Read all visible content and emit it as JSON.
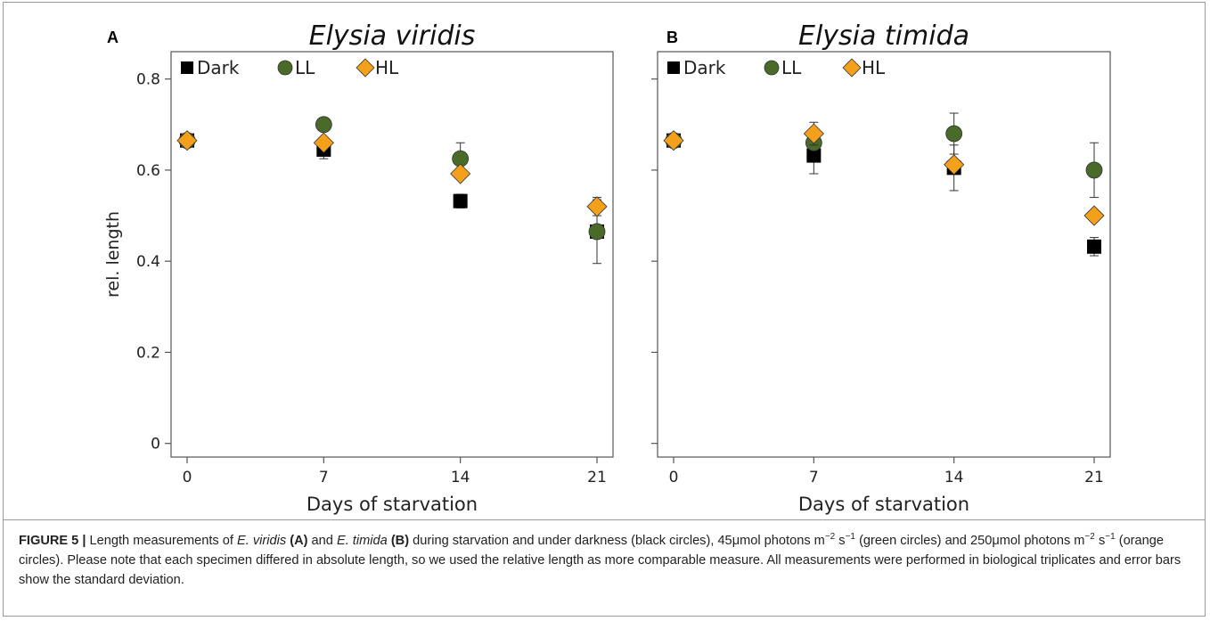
{
  "figure": {
    "caption": {
      "label": "FIGURE 5 |",
      "p1": "Length measurements of",
      "sp1": "E. viridis",
      "tagA": "(A)",
      "p2": "and",
      "sp2": "E. timida",
      "tagB": "(B)",
      "p3": "during starvation and under darkness (black circles), 45",
      "mu1": "μ",
      "p4": "mol photons m",
      "sup1": "−2",
      "p5": "s",
      "sup2": "−1",
      "p6": "(green circles) and 250",
      "mu2": "μ",
      "p7": "mol photons m",
      "sup3": "−2",
      "p8": "s",
      "sup4": "−1",
      "p9": "(orange circles). Please note that each specimen differed in absolute length, so we used the relative length as more comparable measure. All measurements were performed in biological triplicates and error bars show the standard deviation."
    }
  },
  "colors": {
    "dark": "#000000",
    "ll": "#4a6a2a",
    "hl": "#f5a01a",
    "axis": "#555555"
  },
  "chart_data": [
    {
      "type": "scatter",
      "panel": "A",
      "title": "Elysia viridis",
      "xlabel": "Days of starvation",
      "ylabel": "rel. length",
      "x": [
        0,
        7,
        14,
        21
      ],
      "xticks": [
        "0",
        "7",
        "14",
        "21"
      ],
      "yticks": [
        "0",
        "0.2",
        "0.4",
        "0.6",
        "0.8"
      ],
      "ylim": [
        -0.03,
        0.86
      ],
      "legend": "top-left",
      "series": [
        {
          "name": "Dark",
          "marker": "square",
          "values": [
            0.665,
            0.645,
            0.532,
            0.465
          ],
          "errors": [
            0.0,
            0.02,
            0.015,
            0.07
          ]
        },
        {
          "name": "LL",
          "marker": "circle",
          "values": [
            0.665,
            0.7,
            0.625,
            0.465
          ],
          "errors": [
            0.0,
            0.0,
            0.035,
            0.0
          ]
        },
        {
          "name": "HL",
          "marker": "diamond",
          "values": [
            0.665,
            0.66,
            0.592,
            0.52
          ],
          "errors": [
            0.0,
            0.0,
            0.0,
            0.02
          ]
        }
      ]
    },
    {
      "type": "scatter",
      "panel": "B",
      "title": "Elysia timida",
      "xlabel": "Days of starvation",
      "ylabel": "",
      "x": [
        0,
        7,
        14,
        21
      ],
      "xticks": [
        "0",
        "7",
        "14",
        "21"
      ],
      "yticks": [
        "0",
        "0.2",
        "0.4",
        "0.6",
        "0.8"
      ],
      "ylim": [
        -0.03,
        0.86
      ],
      "legend": "top-left",
      "series": [
        {
          "name": "Dark",
          "marker": "square",
          "values": [
            0.665,
            0.632,
            0.605,
            0.432
          ],
          "errors": [
            0.0,
            0.04,
            0.05,
            0.02
          ]
        },
        {
          "name": "LL",
          "marker": "circle",
          "values": [
            0.665,
            0.66,
            0.68,
            0.6
          ],
          "errors": [
            0.0,
            0.0,
            0.045,
            0.06
          ]
        },
        {
          "name": "HL",
          "marker": "diamond",
          "values": [
            0.665,
            0.68,
            0.612,
            0.5
          ],
          "errors": [
            0.0,
            0.025,
            0.0,
            0.0
          ]
        }
      ]
    }
  ]
}
